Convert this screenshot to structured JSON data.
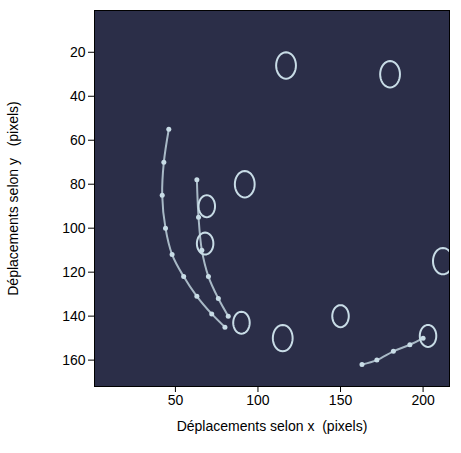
{
  "chart_data": {
    "type": "image",
    "xlabel": "Déplacements selon x  (pixels)",
    "ylabel": "Déplacements selon y   (pixels)",
    "xlim": [
      1,
      216
    ],
    "ylim": [
      1,
      172
    ],
    "xticks": [
      50,
      100,
      150,
      200
    ],
    "yticks": [
      20,
      40,
      60,
      80,
      100,
      120,
      140,
      160
    ],
    "color": "#c8dce6",
    "rings": [
      {
        "x": 117,
        "y": 26,
        "r": 6
      },
      {
        "x": 180,
        "y": 30,
        "r": 6
      },
      {
        "x": 92,
        "y": 80,
        "r": 6
      },
      {
        "x": 69,
        "y": 90,
        "r": 5
      },
      {
        "x": 68,
        "y": 107,
        "r": 5
      },
      {
        "x": 212,
        "y": 115,
        "r": 6
      },
      {
        "x": 90,
        "y": 143,
        "r": 5
      },
      {
        "x": 115,
        "y": 150,
        "r": 6
      },
      {
        "x": 150,
        "y": 140,
        "r": 5
      },
      {
        "x": 203,
        "y": 149,
        "r": 5
      }
    ],
    "filaments": [
      {
        "x": [
          46,
          43,
          42,
          44,
          48,
          55,
          63,
          72,
          80
        ],
        "y": [
          55,
          70,
          85,
          100,
          112,
          122,
          131,
          139,
          145
        ]
      },
      {
        "x": [
          63,
          64,
          66,
          70,
          76,
          82
        ],
        "y": [
          78,
          95,
          110,
          122,
          132,
          140
        ]
      },
      {
        "x": [
          163,
          172,
          182,
          192,
          200
        ],
        "y": [
          162,
          160,
          156,
          153,
          150
        ]
      }
    ]
  }
}
